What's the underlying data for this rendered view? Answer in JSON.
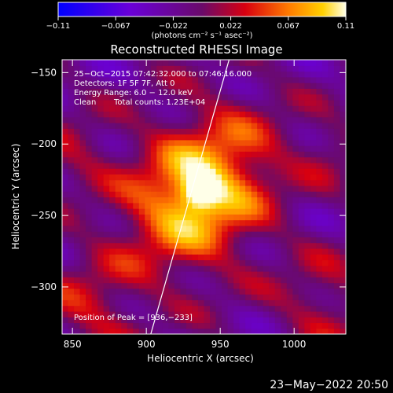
{
  "colorbar": {
    "tick_labels": [
      "−0.11",
      "−0.067",
      "−0.022",
      "0.022",
      "0.067",
      "0.11"
    ],
    "unit_label": "(photons cm⁻² s⁻¹ asec⁻²)",
    "min": -0.11,
    "max": 0.11
  },
  "chart_data": {
    "type": "heatmap",
    "title": "Reconstructed RHESSI Image",
    "xlabel": "Heliocentric X (arcsec)",
    "ylabel": "Heliocentric Y (arcsec)",
    "xlim": [
      843,
      1035
    ],
    "ylim": [
      -333,
      -141
    ],
    "x_ticks": [
      850,
      900,
      950,
      1000
    ],
    "y_ticks": [
      -150,
      -200,
      -250,
      -300
    ],
    "x_tick_labels": [
      "850",
      "900",
      "950",
      "1000"
    ],
    "y_tick_labels": [
      "−150",
      "−200",
      "−250",
      "−300"
    ],
    "peak": [
      936,
      -233
    ],
    "limb_line": [
      [
        903,
        -333
      ],
      [
        956,
        -141
      ]
    ],
    "annotations": {
      "time_range": "25−Oct−2015 07:42:32.000 to 07:46:16.000",
      "detectors": "Detectors: 1F 5F 7F, Att 0",
      "energy": "Energy Range: 6.0 − 12.0 keV",
      "method": "Clean",
      "counts": "Total counts: 1.23E+04",
      "peak_text": "Position of Peak = [936,−233]"
    }
  },
  "footer": {
    "date": "23−May−2022 20:50"
  }
}
